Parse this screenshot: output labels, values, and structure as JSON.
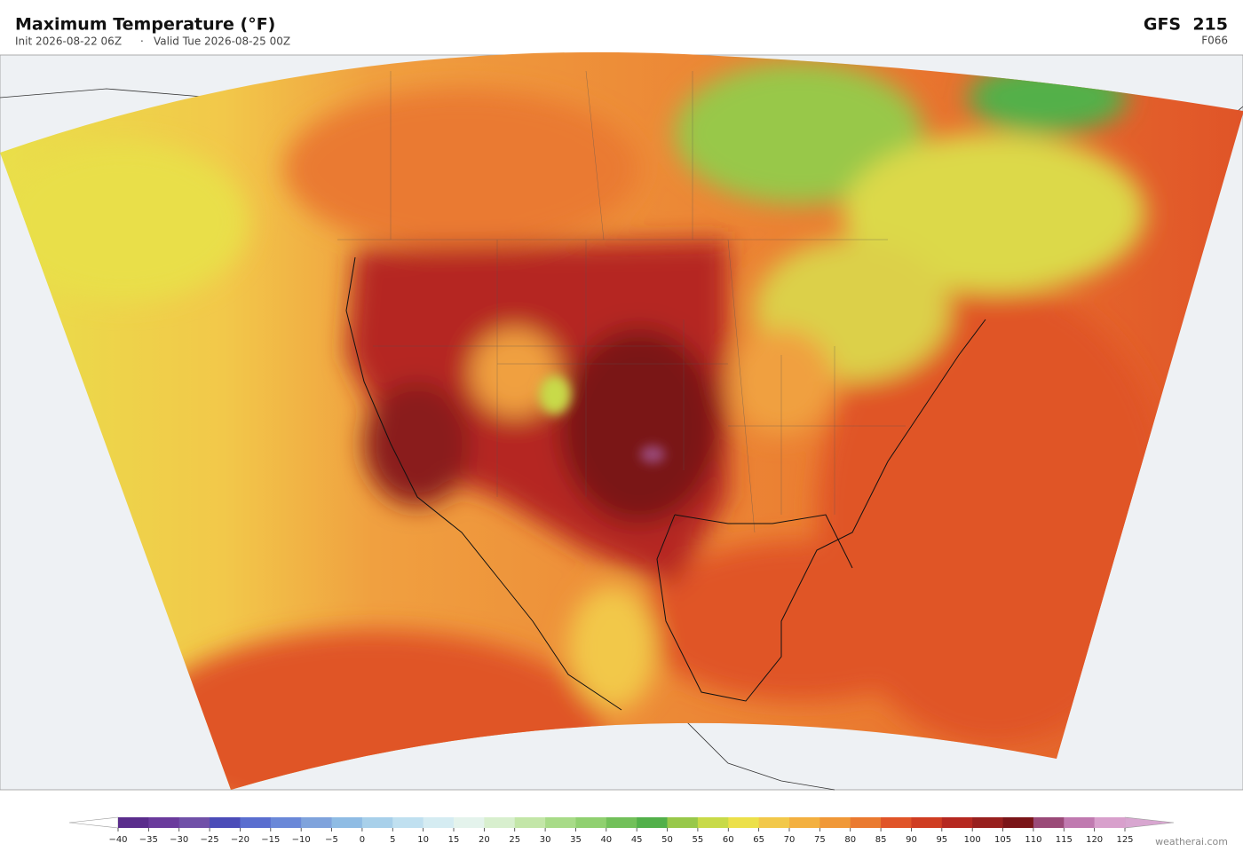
{
  "header": {
    "title": "Maximum Temperature  (°F)",
    "init": "Init 2026-08-22 06Z",
    "separator": "·",
    "valid": "Valid Tue 2026-08-25 00Z",
    "model": "GFS  215",
    "forecast_hour": "F066"
  },
  "colorbar": {
    "ticks": [
      {
        "value": -40,
        "label": "−40"
      },
      {
        "value": -35,
        "label": "−35"
      },
      {
        "value": -30,
        "label": "−30"
      },
      {
        "value": -25,
        "label": "−25"
      },
      {
        "value": -20,
        "label": "−20"
      },
      {
        "value": -15,
        "label": "−15"
      },
      {
        "value": -10,
        "label": "−10"
      },
      {
        "value": -5,
        "label": "−5"
      },
      0,
      5,
      10,
      15,
      20,
      25,
      30,
      35,
      40,
      45,
      50,
      55,
      60,
      65,
      70,
      75,
      80,
      85,
      90,
      95,
      100,
      105,
      110,
      115,
      120,
      125
    ],
    "colors": [
      "#5a2d8c",
      "#6a3b9c",
      "#7050a8",
      "#4b4cb8",
      "#5a6ecf",
      "#6a88d8",
      "#7fa3dc",
      "#8fbce4",
      "#a8d0ea",
      "#c0e0f0",
      "#d5ecf2",
      "#e4f3ec",
      "#d8efce",
      "#c3e6a8",
      "#a8db88",
      "#90d070",
      "#72c05a",
      "#52b04a",
      "#98c84a",
      "#c8da48",
      "#ece04a",
      "#f2c84a",
      "#f3b040",
      "#f09838",
      "#ea7a30",
      "#e05428",
      "#cf3d22",
      "#b52820",
      "#98201e",
      "#7a1518",
      "#9a4a78",
      "#c07ab0",
      "#d8a0cc"
    ],
    "under_color": "#ffffff",
    "over_color": "#d8a6d0"
  },
  "footer": {
    "credit": "weatherai.com"
  }
}
